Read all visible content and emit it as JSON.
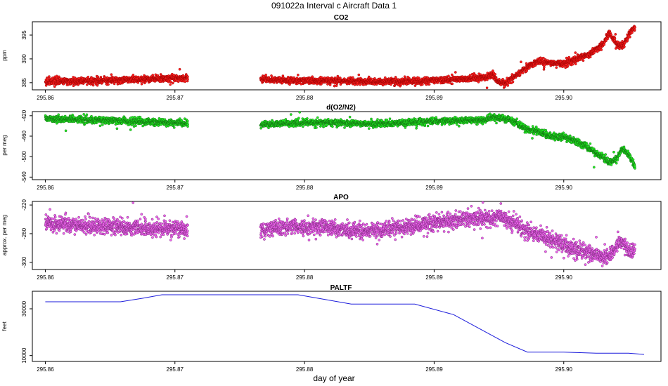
{
  "figure": {
    "title": "091022a   Interval c Aircraft Data 1",
    "xlabel": "day of year"
  },
  "chart_data": [
    {
      "type": "scatter",
      "title": "CO2",
      "ylabel": "ppm",
      "xlim": [
        295.859,
        295.9075
      ],
      "ylim": [
        383.5,
        397.8
      ],
      "xticks": [
        "295.86",
        "295.87",
        "295.88",
        "295.89",
        "295.90"
      ],
      "yticks": [
        "385",
        "390",
        "395"
      ],
      "color_fill": "#ff2020",
      "color_edge": "#990000",
      "series": [
        {
          "x": [
            295.86,
            295.862,
            295.864,
            295.866,
            295.868,
            295.87,
            295.871,
            295.8766,
            295.878,
            295.88,
            295.882,
            295.884,
            295.886,
            295.888,
            295.89,
            295.892,
            295.894,
            295.8945,
            295.895,
            295.8955,
            295.896,
            295.897,
            295.898,
            295.899,
            295.9,
            295.901,
            295.902,
            295.903,
            295.9035,
            295.904,
            295.9045,
            295.905,
            295.9055
          ],
          "y": [
            385.2,
            385.3,
            385.4,
            385.6,
            385.8,
            386.0,
            386.0,
            385.8,
            385.6,
            385.4,
            385.4,
            385.3,
            385.2,
            385.3,
            385.5,
            385.8,
            386.1,
            386.8,
            385.0,
            384.8,
            386.0,
            388.0,
            389.5,
            389.2,
            389.0,
            390.0,
            391.0,
            393.0,
            395.5,
            393.5,
            392.5,
            395.0,
            396.8
          ]
        }
      ]
    },
    {
      "type": "scatter",
      "title": "d(O2/N2)",
      "ylabel": "per meg",
      "xlim": [
        295.859,
        295.9075
      ],
      "ylim": [
        -545,
        -412
      ],
      "xticks": [
        "295.86",
        "295.87",
        "295.88",
        "295.89",
        "295.90"
      ],
      "yticks": [
        "-420",
        "-460",
        "-500",
        "-540"
      ],
      "color_fill": "#22ee22",
      "color_edge": "#116611",
      "series": [
        {
          "x": [
            295.86,
            295.862,
            295.864,
            295.866,
            295.868,
            295.87,
            295.871,
            295.8766,
            295.878,
            295.88,
            295.882,
            295.884,
            295.886,
            295.888,
            295.89,
            295.892,
            295.894,
            295.8945,
            295.895,
            295.896,
            295.897,
            295.898,
            295.899,
            295.9,
            295.901,
            295.902,
            295.903,
            295.9035,
            295.904,
            295.9045,
            295.905,
            295.9055
          ],
          "y": [
            -425,
            -427,
            -429,
            -430,
            -432,
            -434,
            -434,
            -437,
            -436,
            -434,
            -433,
            -435,
            -436,
            -433,
            -431,
            -430,
            -429,
            -422,
            -424,
            -430,
            -445,
            -450,
            -460,
            -462,
            -470,
            -485,
            -500,
            -512,
            -505,
            -485,
            -495,
            -520
          ]
        }
      ]
    },
    {
      "type": "scatter",
      "title": "APO",
      "ylabel": "approx. per meg",
      "xlim": [
        295.859,
        295.9075
      ],
      "ylim": [
        -310,
        -215
      ],
      "xticks": [
        "295.86",
        "295.87",
        "295.88",
        "295.89",
        "295.90"
      ],
      "yticks": [
        "-220",
        "-260",
        "-300"
      ],
      "color_fill": "#ee66ee",
      "color_edge": "#772277",
      "series": [
        {
          "x": [
            295.86,
            295.862,
            295.864,
            295.866,
            295.868,
            295.87,
            295.871,
            295.8766,
            295.878,
            295.88,
            295.882,
            295.884,
            295.886,
            295.888,
            295.89,
            295.892,
            295.894,
            295.8945,
            295.895,
            295.896,
            295.897,
            295.898,
            295.899,
            295.9,
            295.901,
            295.902,
            295.903,
            295.9035,
            295.904,
            295.9045,
            295.905,
            295.9055
          ],
          "y": [
            -245,
            -248,
            -250,
            -251,
            -252,
            -254,
            -254,
            -255,
            -252,
            -250,
            -252,
            -256,
            -255,
            -250,
            -244,
            -240,
            -238,
            -238,
            -235,
            -245,
            -255,
            -260,
            -268,
            -275,
            -282,
            -288,
            -292,
            -290,
            -280,
            -270,
            -285,
            -285
          ]
        }
      ]
    },
    {
      "type": "line",
      "title": "PALTF",
      "ylabel": "feet",
      "xlim": [
        295.859,
        295.9075
      ],
      "ylim": [
        7500,
        37500
      ],
      "xticks": [
        "295.86",
        "295.87",
        "295.88",
        "295.89",
        "295.90"
      ],
      "yticks": [
        "10000",
        "30000"
      ],
      "color_line": "#1a1adb",
      "series": [
        {
          "x": [
            295.86,
            295.8658,
            295.8675,
            295.869,
            295.8795,
            295.8836,
            295.8885,
            295.8915,
            295.8935,
            295.8955,
            295.8972,
            295.9,
            295.9025,
            295.905,
            295.9062
          ],
          "y": [
            33000,
            33000,
            34500,
            36000,
            36000,
            32000,
            32000,
            27500,
            21500,
            15500,
            11500,
            11500,
            11000,
            11000,
            10500
          ]
        }
      ]
    }
  ]
}
